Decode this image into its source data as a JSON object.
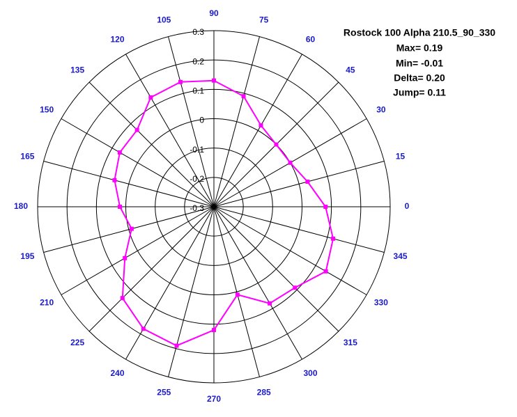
{
  "chart_data": {
    "type": "polar",
    "title": "Rostock 100 Alpha 210.5_90_330",
    "annotations": [
      "Max= 0.19",
      "Min= -0.01",
      "Delta= 0.20",
      "Jump= 0.11"
    ],
    "rlim": [
      -0.3,
      0.3
    ],
    "rticks": [
      -0.3,
      -0.2,
      -0.1,
      0,
      0.1,
      0.2,
      0.3
    ],
    "thetaticks": [
      0,
      15,
      30,
      45,
      60,
      75,
      90,
      105,
      120,
      135,
      150,
      165,
      180,
      195,
      210,
      225,
      240,
      255,
      270,
      285,
      300,
      315,
      330,
      345
    ],
    "grid": true,
    "series": [
      {
        "color": "#ff00ff",
        "theta": [
          0,
          15,
          30,
          45,
          60,
          75,
          90,
          105,
          120,
          135,
          150,
          165,
          180,
          195,
          210,
          225,
          240,
          255,
          270,
          285,
          300,
          315,
          330,
          345
        ],
        "values": [
          0.08,
          0.03,
          0.0,
          0.0,
          0.02,
          0.09,
          0.13,
          0.14,
          0.13,
          0.07,
          0.07,
          0.05,
          0.02,
          -0.01,
          0.05,
          0.14,
          0.18,
          0.19,
          0.12,
          0.01,
          0.08,
          0.09,
          0.14,
          0.12
        ]
      }
    ]
  }
}
